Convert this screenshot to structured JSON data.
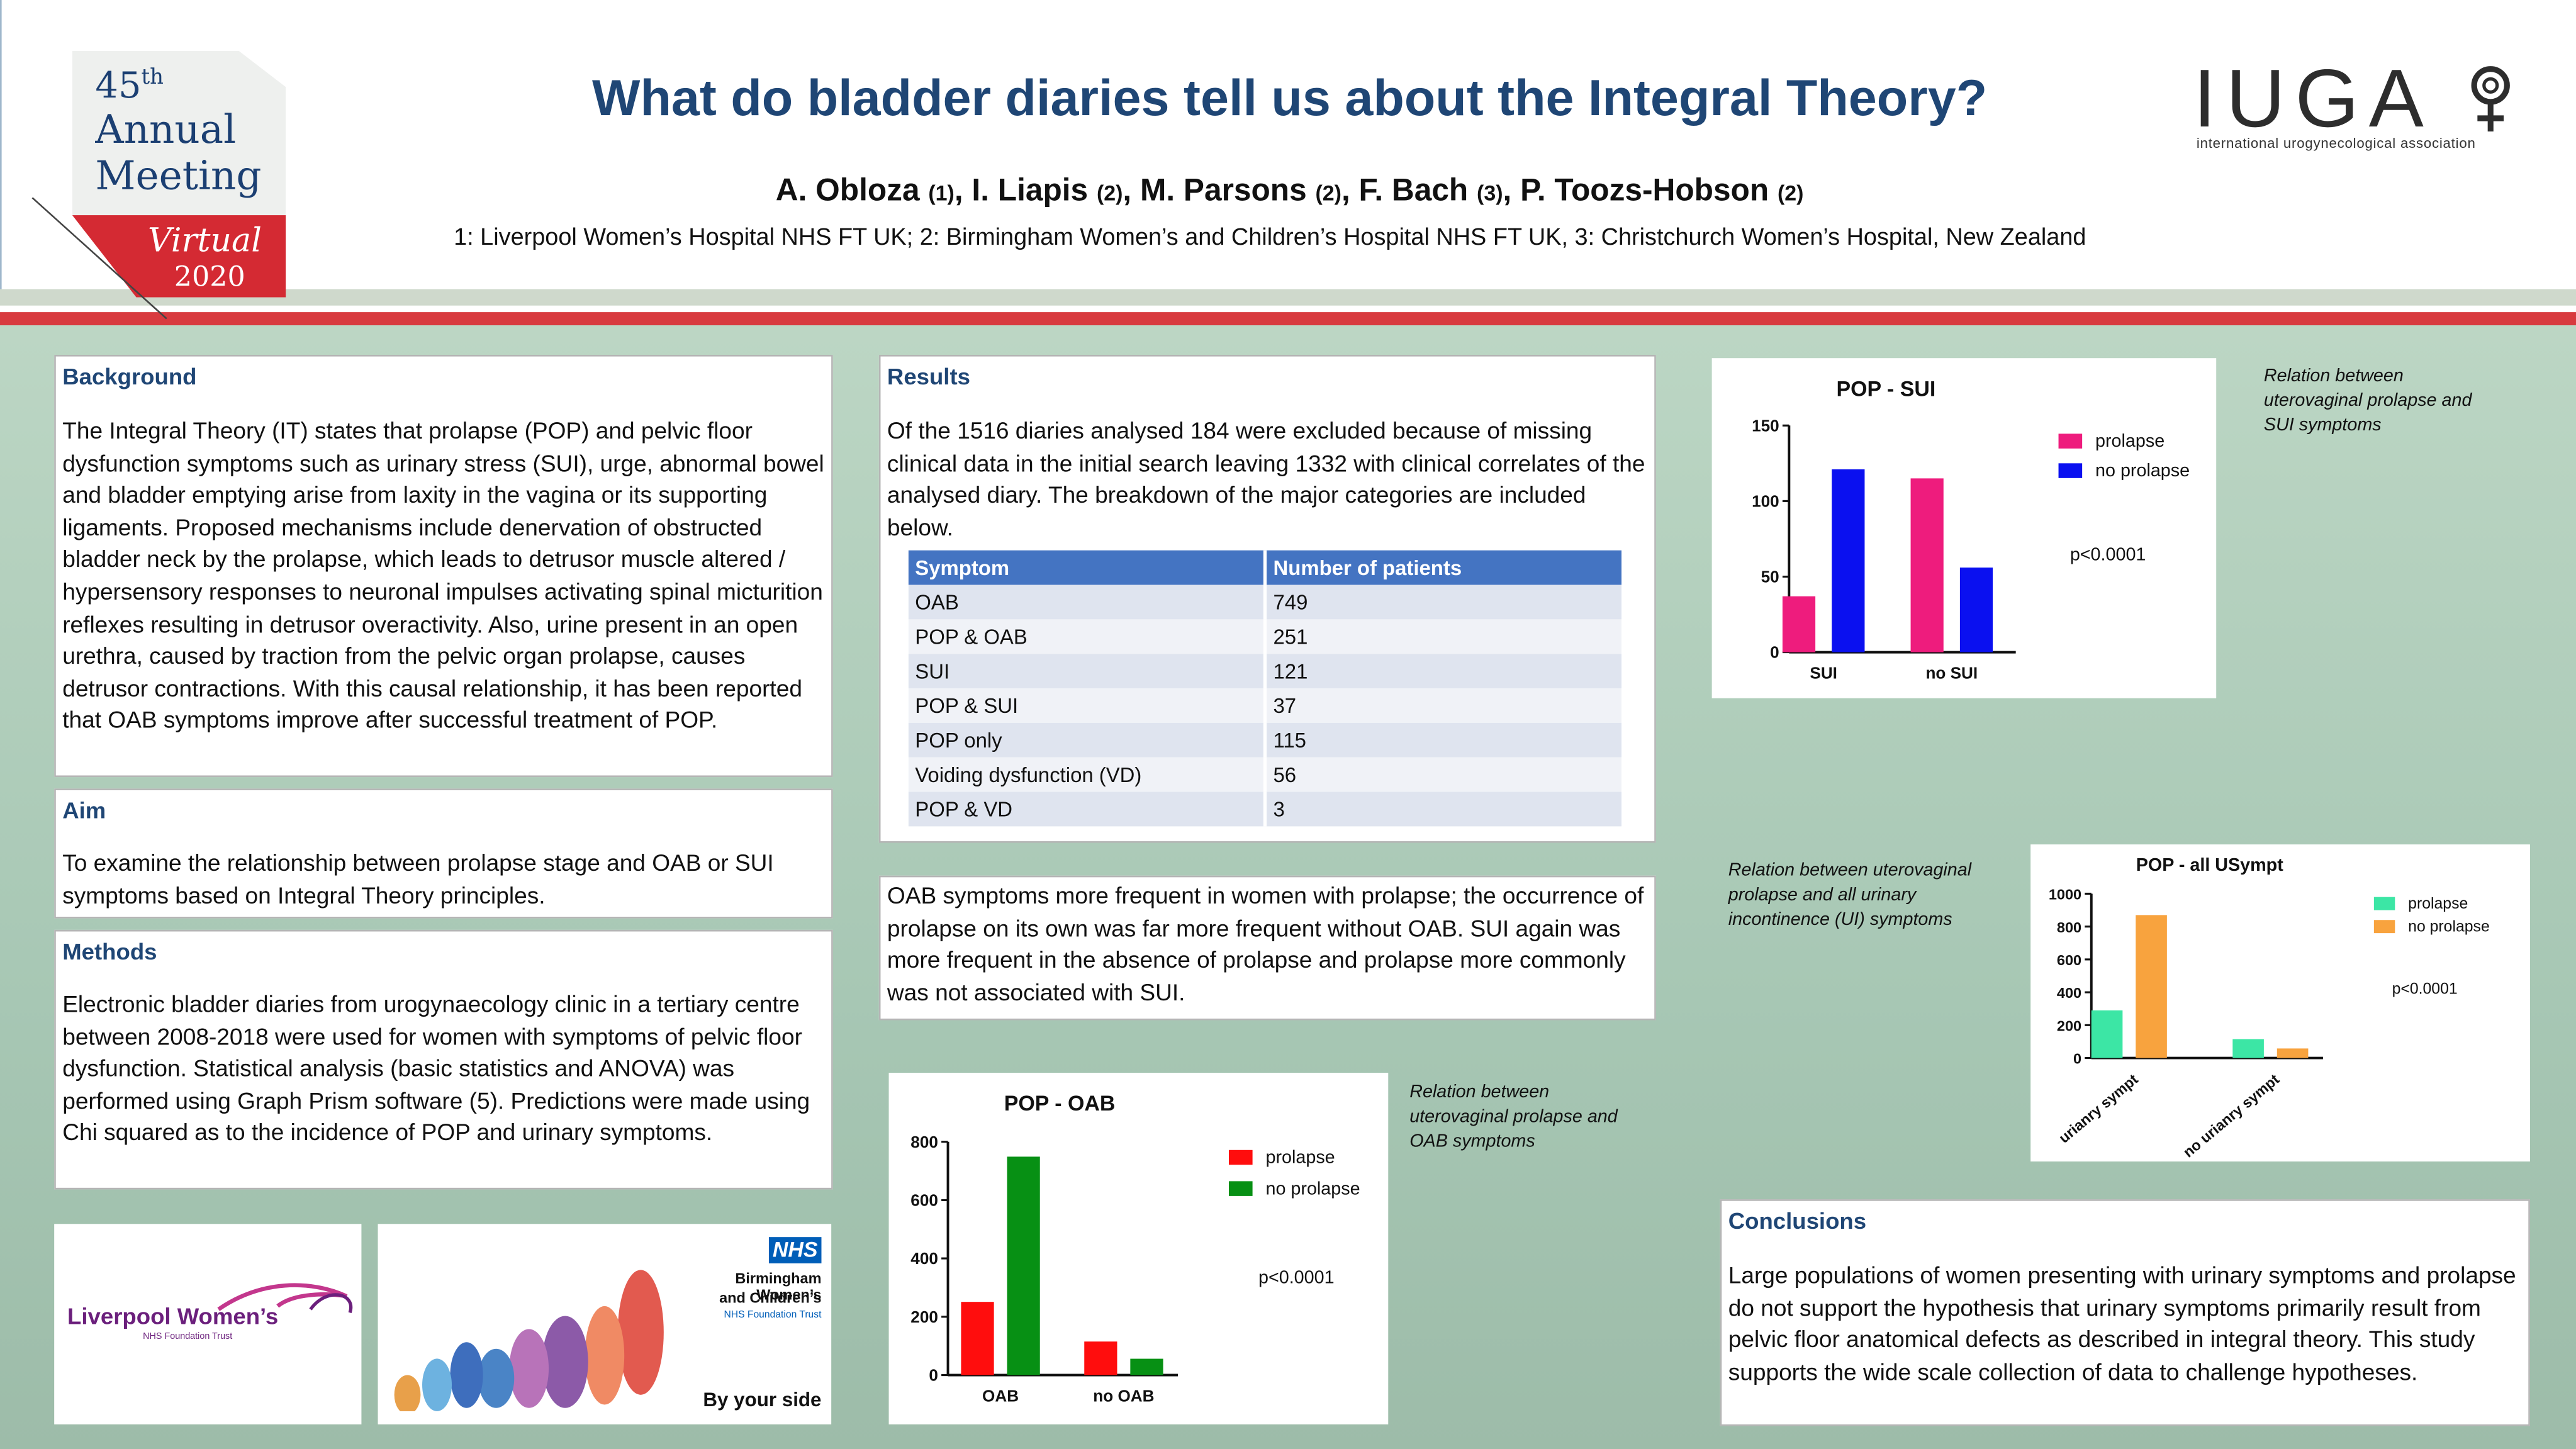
{
  "header": {
    "meeting": {
      "number": "45",
      "ordinal": "th",
      "line1": "Annual",
      "line2": "Meeting",
      "virtual": "Virtual",
      "year": "2020"
    },
    "title": "What do bladder diaries tell us about the Integral Theory?",
    "authors": [
      {
        "name": "A. Obloza",
        "ref": "(1)"
      },
      {
        "name": "I. Liapis",
        "ref": "(2)"
      },
      {
        "name": "M. Parsons",
        "ref": "(2)"
      },
      {
        "name": "F. Bach",
        "ref": "(3)"
      },
      {
        "name": "P. Toozs-Hobson",
        "ref": "(2)"
      }
    ],
    "affiliations": "1: Liverpool Women’s Hospital NHS FT UK; 2: Birmingham Women’s and Children’s Hospital NHS FT UK, 3: Christchurch Women’s Hospital, New Zealand",
    "iuga": {
      "word": "IUGA",
      "sub": "international urogynecological association",
      "icon": "female-symbol-icon"
    }
  },
  "background": {
    "heading": "Background",
    "text": "The Integral Theory (IT) states that prolapse (POP) and pelvic floor dysfunction symptoms such as urinary stress (SUI), urge, abnormal bowel and bladder emptying arise from laxity in the vagina or its supporting ligaments. Proposed mechanisms include denervation of obstructed bladder neck by the prolapse, which leads to detrusor muscle altered / hypersensory responses to neuronal impulses activating spinal micturition reflexes resulting in detrusor overactivity. Also, urine present in an open urethra, caused by traction from the pelvic organ prolapse, causes detrusor contractions. With this causal relationship, it has been reported that OAB symptoms improve after successful treatment of POP."
  },
  "aim": {
    "heading": "Aim",
    "text": "To examine the relationship between prolapse stage and OAB or SUI symptoms based on  Integral Theory principles."
  },
  "methods": {
    "heading": "Methods",
    "text": "Electronic bladder diaries from urogynaecology clinic in a tertiary centre between 2008-2018 were used for women with symptoms of pelvic floor dysfunction. Statistical analysis (basic statistics and ANOVA) was performed using Graph Prism software (5). Predictions were made using Chi squared as to the incidence of POP and urinary symptoms."
  },
  "results": {
    "heading": "Results",
    "text": "Of the 1516 diaries analysed 184 were excluded because of missing clinical data in the initial search leaving 1332 with clinical correlates of the analysed diary. The breakdown of the major categories are included below.",
    "table": {
      "headers": [
        "Symptom",
        "Number of patients"
      ],
      "rows": [
        [
          "OAB",
          "749"
        ],
        [
          "POP & OAB",
          "251"
        ],
        [
          "SUI",
          "121"
        ],
        [
          "POP & SUI",
          "37"
        ],
        [
          "POP only",
          "115"
        ],
        [
          "Voiding dysfunction (VD)",
          "56"
        ],
        [
          "POP & VD",
          "3"
        ]
      ]
    }
  },
  "findings": {
    "text": "OAB symptoms more frequent in women with prolapse; the occurrence of prolapse on its own was far more frequent without OAB.  SUI again was more frequent in the absence of prolapse and prolapse more commonly was not associated with SUI."
  },
  "conclusions": {
    "heading": "Conclusions",
    "text": "Large populations of women presenting with urinary symptoms and prolapse do not support the hypothesis that urinary symptoms primarily result from pelvic floor anatomical defects as described in integral theory. This study supports the wide scale collection of data to challenge hypotheses."
  },
  "captions": {
    "sui": "Relation  between uterovaginal prolapse and SUI symptoms",
    "ui": "Relation  between uterovaginal prolapse and all urinary incontinence (UI) symptoms",
    "oab": "Relation  between uterovaginal prolapse and OAB symptoms"
  },
  "logos": {
    "liverpool": {
      "name": "Liverpool Women’s",
      "sub": "NHS Foundation Trust"
    },
    "birmingham": {
      "badge": "NHS",
      "line1": "Birmingham Women’s",
      "line2": "and Children’s",
      "line3": "NHS Foundation Trust",
      "tagline": "By your side"
    }
  },
  "chart_data": [
    {
      "id": "pop-sui",
      "type": "bar",
      "title": "POP - SUI",
      "categories": [
        "SUI",
        "no SUI"
      ],
      "series": [
        {
          "name": "prolapse",
          "color": "#ee1c7d",
          "values": [
            37,
            115
          ]
        },
        {
          "name": "no prolapse",
          "color": "#0a10f0",
          "values": [
            121,
            56
          ]
        }
      ],
      "ylim": [
        0,
        150
      ],
      "yticks": [
        0,
        50,
        100,
        150
      ],
      "annotation": "p<0.0001",
      "legend": "right"
    },
    {
      "id": "pop-all-usympt",
      "type": "bar",
      "title": "POP - all USympt",
      "categories": [
        "urianry sympt",
        "no urianry sympt"
      ],
      "series": [
        {
          "name": "prolapse",
          "color": "#3ce6a5",
          "values": [
            290,
            115
          ]
        },
        {
          "name": "no prolapse",
          "color": "#f8a33e",
          "values": [
            870,
            58
          ]
        }
      ],
      "ylim": [
        0,
        1000
      ],
      "yticks": [
        0,
        200,
        400,
        600,
        800,
        1000
      ],
      "annotation": "p<0.0001",
      "legend": "right"
    },
    {
      "id": "pop-oab",
      "type": "bar",
      "title": "POP - OAB",
      "categories": [
        "OAB",
        "no OAB"
      ],
      "series": [
        {
          "name": "prolapse",
          "color": "#ff0d0d",
          "values": [
            251,
            115
          ]
        },
        {
          "name": "no prolapse",
          "color": "#079014",
          "values": [
            749,
            56
          ]
        }
      ],
      "ylim": [
        0,
        800
      ],
      "yticks": [
        0,
        200,
        400,
        600,
        800
      ],
      "annotation": "p<0.0001",
      "legend": "right"
    }
  ]
}
